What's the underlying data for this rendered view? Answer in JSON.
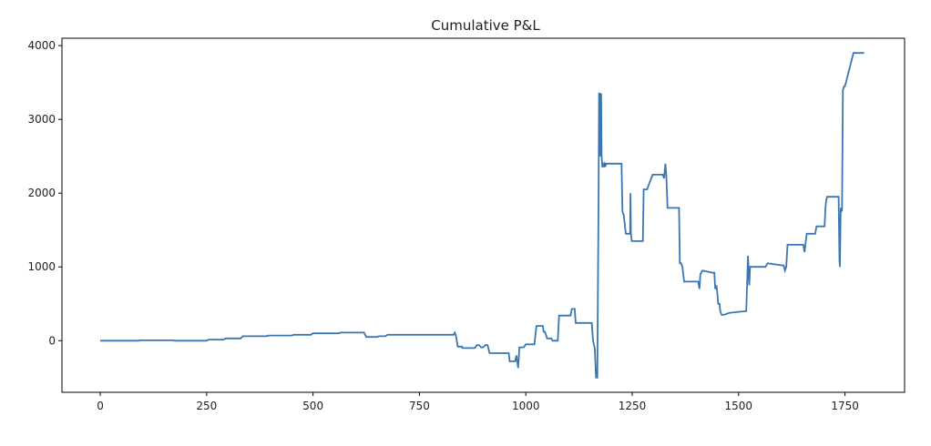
{
  "chart_data": {
    "type": "line",
    "title": "Cumulative P&L",
    "xlabel": "",
    "ylabel": "",
    "xlim": [
      -90,
      1890
    ],
    "ylim": [
      -700,
      4100
    ],
    "x_ticks": [
      0,
      250,
      500,
      750,
      1000,
      1250,
      1500,
      1750
    ],
    "y_ticks": [
      0,
      1000,
      2000,
      3000,
      4000
    ],
    "grid": false,
    "colors": {
      "line": "#3a76b2",
      "axes": "#000000",
      "text": "#222222"
    },
    "series": [
      {
        "color": "#3a76b2",
        "x": [
          0,
          90,
          95,
          170,
          175,
          250,
          255,
          290,
          295,
          330,
          335,
          390,
          395,
          450,
          455,
          495,
          500,
          560,
          565,
          620,
          625,
          650,
          655,
          670,
          675,
          830,
          833,
          836,
          840,
          850,
          851,
          880,
          885,
          890,
          895,
          900,
          905,
          910,
          915,
          960,
          962,
          975,
          978,
          982,
          985,
          995,
          1000,
          1020,
          1025,
          1040,
          1042,
          1045,
          1050,
          1060,
          1063,
          1075,
          1078,
          1105,
          1108,
          1115,
          1117,
          1155,
          1158,
          1162,
          1165,
          1168,
          1171,
          1172,
          1174,
          1175,
          1177,
          1178,
          1180,
          1182,
          1183,
          1185,
          1186,
          1188,
          1189,
          1190,
          1225,
          1227,
          1230,
          1235,
          1238,
          1245,
          1246,
          1247,
          1249,
          1250,
          1275,
          1277,
          1285,
          1288,
          1298,
          1302,
          1322,
          1325,
          1328,
          1330,
          1333,
          1335,
          1360,
          1362,
          1365,
          1368,
          1372,
          1375,
          1405,
          1408,
          1410,
          1415,
          1440,
          1443,
          1445,
          1448,
          1450,
          1452,
          1455,
          1457,
          1460,
          1462,
          1465,
          1480,
          1483,
          1515,
          1518,
          1520,
          1522,
          1525,
          1527,
          1530,
          1532,
          1560,
          1563,
          1568,
          1603,
          1606,
          1609,
          1612,
          1615,
          1618,
          1650,
          1652,
          1655,
          1657,
          1660,
          1663,
          1680,
          1683,
          1700,
          1702,
          1704,
          1706,
          1708,
          1710,
          1733,
          1735,
          1737,
          1738,
          1740,
          1743,
          1745,
          1748,
          1750,
          1770,
          1772,
          1795
        ],
        "y": [
          0,
          0,
          5,
          5,
          0,
          0,
          15,
          15,
          30,
          30,
          60,
          60,
          70,
          70,
          80,
          80,
          100,
          100,
          110,
          110,
          50,
          50,
          60,
          60,
          80,
          80,
          110,
          60,
          -80,
          -80,
          -100,
          -100,
          -60,
          -60,
          -90,
          -90,
          -60,
          -60,
          -170,
          -170,
          -280,
          -280,
          -200,
          -370,
          -90,
          -90,
          -50,
          -50,
          200,
          200,
          120,
          120,
          30,
          30,
          0,
          0,
          340,
          340,
          430,
          430,
          240,
          240,
          0,
          -100,
          -500,
          -500,
          2000,
          3350,
          3350,
          2500,
          3350,
          2500,
          2350,
          2400,
          2400,
          2350,
          2400,
          2380,
          2400,
          2400,
          2400,
          1750,
          1700,
          1450,
          1450,
          1450,
          2000,
          1450,
          1350,
          1350,
          1350,
          2050,
          2050,
          2100,
          2250,
          2250,
          2250,
          2200,
          2400,
          2250,
          1800,
          1800,
          1800,
          1050,
          1050,
          1000,
          800,
          800,
          800,
          700,
          900,
          950,
          920,
          920,
          700,
          750,
          650,
          500,
          500,
          400,
          350,
          350,
          350,
          380,
          380,
          400,
          400,
          750,
          1150,
          750,
          1000,
          1000,
          1000,
          1000,
          1000,
          1050,
          1020,
          1020,
          950,
          1000,
          1300,
          1300,
          1300,
          1300,
          1200,
          1300,
          1450,
          1450,
          1450,
          1550,
          1550,
          1550,
          1800,
          1900,
          1950,
          1950,
          1950,
          1950,
          1100,
          1000,
          1800,
          1750,
          3400,
          3450,
          3450,
          3900,
          3900,
          3900
        ]
      }
    ]
  }
}
